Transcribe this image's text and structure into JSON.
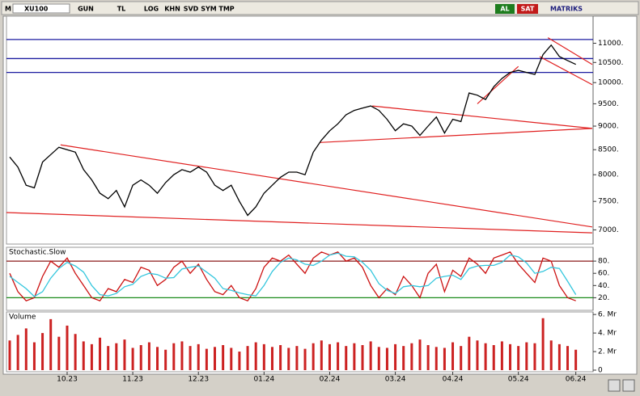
{
  "toolbar": {
    "menu": "M",
    "symbol": "XU100",
    "buttons": [
      "GUN",
      "TL",
      "LOG",
      "KHN",
      "SVD",
      "SYM",
      "TMP"
    ],
    "buy": "AL",
    "sell": "SAT",
    "brand": "MATRIKS"
  },
  "chart_data": [
    {
      "type": "line",
      "log": true,
      "ylim": [
        6790,
        11700
      ],
      "yticks": [
        {
          "value": 11000,
          "label": "11000."
        },
        {
          "value": 10500,
          "label": "10500."
        },
        {
          "value": 10000,
          "label": "10000."
        },
        {
          "value": 9500,
          "label": "9500."
        },
        {
          "value": 9000,
          "label": "9000."
        },
        {
          "value": 8500,
          "label": "8500."
        },
        {
          "value": 8000,
          "label": "8000."
        },
        {
          "value": 7500,
          "label": "7500."
        },
        {
          "value": 7000,
          "label": "7000."
        }
      ],
      "series": [
        {
          "color": "#000000",
          "values": [
            8350,
            8150,
            7800,
            7750,
            8250,
            8400,
            8550,
            8500,
            8450,
            8100,
            7900,
            7650,
            7550,
            7700,
            7400,
            7800,
            7900,
            7800,
            7650,
            7850,
            8000,
            8100,
            8050,
            8150,
            8050,
            7800,
            7700,
            7800,
            7500,
            7250,
            7400,
            7650,
            7800,
            7950,
            8050,
            8050,
            8000,
            8450,
            8700,
            8900,
            9050,
            9250,
            9350,
            9400,
            9450,
            9350,
            9150,
            8900,
            9050,
            9000,
            8800,
            9000,
            9200,
            8850,
            9150,
            9100,
            9750,
            9700,
            9600,
            9900,
            10100,
            10250,
            10300,
            10250,
            10200,
            10700,
            10950,
            10650,
            10550,
            10450
          ]
        }
      ],
      "hlines": [
        {
          "value": 11100,
          "color": "#1c1ca0"
        },
        {
          "value": 10600,
          "color": "#1c1ca0"
        },
        {
          "value": 10250,
          "color": "#1c1ca0"
        }
      ],
      "trendlines": [
        {
          "color": "#e02020",
          "x": [
            6.2,
            71
          ],
          "y": [
            8600,
            7050
          ]
        },
        {
          "color": "#e02020",
          "x": [
            -0.4,
            71
          ],
          "y": [
            7300,
            6950
          ]
        },
        {
          "color": "#e02020",
          "x": [
            44.2,
            71
          ],
          "y": [
            9450,
            8950
          ]
        },
        {
          "color": "#e02020",
          "x": [
            37.8,
            71
          ],
          "y": [
            8650,
            8950
          ]
        },
        {
          "color": "#e02020",
          "x": [
            57,
            62
          ],
          "y": [
            9500,
            10400
          ]
        },
        {
          "color": "#e02020",
          "x": [
            65.6,
            71
          ],
          "y": [
            11150,
            10450
          ]
        },
        {
          "color": "#e02020",
          "x": [
            64.6,
            71
          ],
          "y": [
            10650,
            9950
          ]
        }
      ]
    },
    {
      "type": "line",
      "title": "Stochastic.Slow",
      "ylim": [
        2,
        100
      ],
      "yticks": [
        {
          "value": 80,
          "label": "80."
        },
        {
          "value": 60,
          "label": "60."
        },
        {
          "value": 40,
          "label": "40."
        },
        {
          "value": 20,
          "label": "20."
        }
      ],
      "hlines": [
        {
          "value": 80,
          "color": "#8b1a1a"
        },
        {
          "value": 20,
          "color": "#1a8b1a"
        }
      ],
      "series": [
        {
          "color": "#cc1111",
          "values": [
            60,
            30,
            15,
            20,
            55,
            80,
            70,
            85,
            60,
            40,
            20,
            15,
            35,
            30,
            50,
            45,
            70,
            65,
            40,
            50,
            70,
            80,
            60,
            75,
            50,
            30,
            25,
            40,
            20,
            15,
            35,
            70,
            85,
            80,
            90,
            75,
            60,
            85,
            95,
            90,
            95,
            80,
            85,
            70,
            40,
            20,
            35,
            25,
            55,
            40,
            20,
            60,
            75,
            30,
            65,
            55,
            85,
            75,
            60,
            85,
            90,
            95,
            75,
            60,
            45,
            85,
            80,
            40,
            20,
            15
          ]
        },
        {
          "color": "#33c6dd",
          "values": [
            55,
            45,
            35,
            22,
            30,
            52,
            68,
            78,
            72,
            62,
            40,
            25,
            23,
            27,
            38,
            42,
            55,
            60,
            58,
            52,
            53,
            67,
            70,
            72,
            62,
            52,
            35,
            32,
            28,
            25,
            23,
            40,
            63,
            78,
            85,
            82,
            75,
            73,
            80,
            90,
            93,
            88,
            87,
            78,
            65,
            43,
            32,
            27,
            38,
            40,
            38,
            40,
            52,
            55,
            57,
            50,
            68,
            72,
            73,
            73,
            78,
            90,
            87,
            77,
            60,
            63,
            70,
            68,
            47,
            25
          ]
        }
      ]
    },
    {
      "type": "bar",
      "title": "Volume",
      "color": "#cc2222",
      "ylim": [
        0,
        6.1
      ],
      "yticks": [
        {
          "value": 6,
          "label": "6. Mr"
        },
        {
          "value": 4,
          "label": "4. Mr"
        },
        {
          "value": 2,
          "label": "2. Mr"
        },
        0
      ],
      "categories": [
        null,
        null,
        null,
        null,
        null,
        null,
        null,
        "10.23",
        null,
        null,
        null,
        null,
        null,
        null,
        null,
        "11.23",
        null,
        null,
        null,
        null,
        null,
        null,
        null,
        "12.23",
        null,
        null,
        null,
        null,
        null,
        null,
        null,
        "01.24",
        null,
        null,
        null,
        null,
        null,
        null,
        null,
        "02.24",
        null,
        null,
        null,
        null,
        null,
        null,
        null,
        "03.24",
        null,
        null,
        null,
        null,
        null,
        null,
        "04.24",
        null,
        null,
        null,
        null,
        null,
        null,
        null,
        "05.24",
        null,
        null,
        null,
        null,
        null,
        null,
        "06.24"
      ],
      "values": [
        3.2,
        3.8,
        4.5,
        3.0,
        4.0,
        5.5,
        3.6,
        4.8,
        3.9,
        3.1,
        2.8,
        3.5,
        2.6,
        2.9,
        3.3,
        2.4,
        2.7,
        3.0,
        2.5,
        2.2,
        2.9,
        3.1,
        2.6,
        2.8,
        2.3,
        2.5,
        2.7,
        2.4,
        2.0,
        2.6,
        3.0,
        2.8,
        2.5,
        2.7,
        2.4,
        2.6,
        2.3,
        2.9,
        3.2,
        2.8,
        3.0,
        2.6,
        2.9,
        2.7,
        3.1,
        2.5,
        2.4,
        2.8,
        2.6,
        2.9,
        3.3,
        2.7,
        2.5,
        2.4,
        3.0,
        2.6,
        3.6,
        3.2,
        2.9,
        2.7,
        3.1,
        2.8,
        2.6,
        3.0,
        2.9,
        5.6,
        3.2,
        2.8,
        2.6,
        2.2
      ]
    }
  ]
}
